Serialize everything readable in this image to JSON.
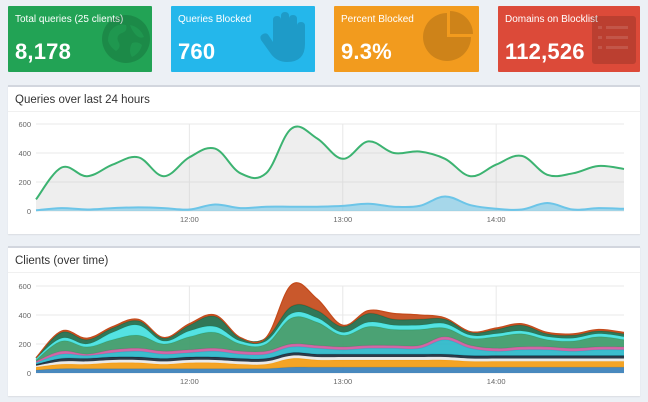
{
  "stats": {
    "total": {
      "label": "Total queries (25 clients)",
      "value": "8,178",
      "icon": "globe-icon",
      "color": "#22a355"
    },
    "blocked": {
      "label": "Queries Blocked",
      "value": "760",
      "icon": "hand-icon",
      "color": "#24b7eb"
    },
    "percent": {
      "label": "Percent Blocked",
      "value": "9.3%",
      "icon": "pie-chart-icon",
      "color": "#f29b1e"
    },
    "domains": {
      "label": "Domains on Blocklist",
      "value": "112,526",
      "icon": "list-icon",
      "color": "#dc4a39"
    }
  },
  "queries_panel": {
    "title": "Queries over last 24 hours"
  },
  "clients_panel": {
    "title": "Clients (over time)"
  },
  "chart_data": [
    {
      "type": "area",
      "title": "Queries over last 24 hours",
      "xlabel": "",
      "ylabel": "",
      "ylim": [
        0,
        600
      ],
      "y_ticks": [
        "0",
        "200",
        "400",
        "600"
      ],
      "x_ticks": [
        "12:00",
        "13:00",
        "14:00"
      ],
      "grid": true,
      "x": [
        "11:00",
        "11:10",
        "11:20",
        "11:30",
        "11:40",
        "11:50",
        "12:00",
        "12:10",
        "12:20",
        "12:30",
        "12:40",
        "12:50",
        "13:00",
        "13:10",
        "13:20",
        "13:30",
        "13:40",
        "13:50",
        "14:00",
        "14:10",
        "14:20",
        "14:30",
        "14:40",
        "14:50"
      ],
      "series": [
        {
          "color": "#3cb371",
          "values": [
            80,
            300,
            240,
            320,
            370,
            240,
            370,
            430,
            260,
            260,
            570,
            500,
            360,
            480,
            400,
            410,
            360,
            240,
            320,
            380,
            250,
            260,
            310,
            290
          ]
        },
        {
          "color": "#6cc5e8",
          "values": [
            5,
            20,
            10,
            20,
            25,
            20,
            10,
            45,
            20,
            30,
            30,
            30,
            35,
            50,
            30,
            35,
            100,
            40,
            15,
            10,
            55,
            10,
            20,
            15
          ]
        }
      ]
    },
    {
      "type": "area",
      "title": "Clients (over time)",
      "xlabel": "",
      "ylabel": "",
      "ylim": [
        0,
        600
      ],
      "y_ticks": [
        "0",
        "200",
        "400",
        "600"
      ],
      "x_ticks": [
        "12:00",
        "13:00",
        "14:00"
      ],
      "grid": true,
      "x": [
        "11:00",
        "11:10",
        "11:20",
        "11:30",
        "11:40",
        "11:50",
        "12:00",
        "12:10",
        "12:20",
        "12:30",
        "12:40",
        "12:50",
        "13:00",
        "13:10",
        "13:20",
        "13:30",
        "13:40",
        "13:50",
        "14:00",
        "14:10",
        "14:20",
        "14:30",
        "14:40",
        "14:50"
      ],
      "stacked": true,
      "series": [
        {
          "color": "#3a7fb8",
          "values": [
            20,
            30,
            30,
            30,
            30,
            30,
            30,
            30,
            30,
            30,
            40,
            40,
            40,
            40,
            40,
            40,
            40,
            40,
            40,
            40,
            40,
            40,
            40,
            40
          ]
        },
        {
          "color": "#f39c12",
          "values": [
            20,
            30,
            30,
            40,
            40,
            30,
            40,
            40,
            30,
            30,
            60,
            50,
            50,
            50,
            50,
            50,
            50,
            40,
            40,
            40,
            40,
            40,
            40,
            40
          ]
        },
        {
          "color": "#e8e8e8",
          "values": [
            10,
            20,
            20,
            20,
            20,
            20,
            20,
            20,
            20,
            20,
            20,
            20,
            20,
            20,
            20,
            20,
            20,
            20,
            20,
            20,
            20,
            20,
            20,
            20
          ]
        },
        {
          "color": "#1a2a3a",
          "values": [
            10,
            20,
            20,
            20,
            20,
            20,
            20,
            20,
            20,
            20,
            20,
            20,
            20,
            20,
            20,
            20,
            20,
            20,
            20,
            20,
            20,
            20,
            20,
            20
          ]
        },
        {
          "color": "#2ab7c9",
          "values": [
            10,
            30,
            20,
            30,
            40,
            30,
            30,
            40,
            30,
            30,
            40,
            40,
            30,
            40,
            40,
            40,
            100,
            50,
            30,
            40,
            40,
            30,
            40,
            40
          ]
        },
        {
          "color": "#cf5b9e",
          "values": [
            10,
            20,
            10,
            20,
            20,
            20,
            20,
            20,
            20,
            20,
            20,
            20,
            20,
            20,
            20,
            20,
            20,
            20,
            20,
            20,
            20,
            20,
            20,
            20
          ]
        },
        {
          "color": "#3c9a68",
          "values": [
            10,
            70,
            50,
            70,
            90,
            50,
            90,
            110,
            50,
            50,
            180,
            160,
            80,
            130,
            110,
            110,
            60,
            50,
            80,
            90,
            50,
            50,
            70,
            50
          ]
        },
        {
          "color": "#45e0e0",
          "values": [
            10,
            20,
            20,
            50,
            70,
            20,
            40,
            40,
            20,
            20,
            30,
            30,
            20,
            30,
            30,
            30,
            30,
            20,
            20,
            20,
            20,
            20,
            20,
            20
          ]
        },
        {
          "color": "#1f6b4a",
          "values": [
            5,
            40,
            30,
            30,
            30,
            20,
            40,
            70,
            20,
            20,
            50,
            50,
            40,
            60,
            40,
            40,
            30,
            20,
            30,
            40,
            20,
            20,
            20,
            20
          ]
        },
        {
          "color": "#c44a1a",
          "values": [
            0,
            10,
            10,
            10,
            10,
            5,
            10,
            10,
            5,
            5,
            150,
            80,
            10,
            20,
            40,
            30,
            10,
            5,
            10,
            10,
            10,
            10,
            10,
            10
          ]
        }
      ]
    }
  ]
}
